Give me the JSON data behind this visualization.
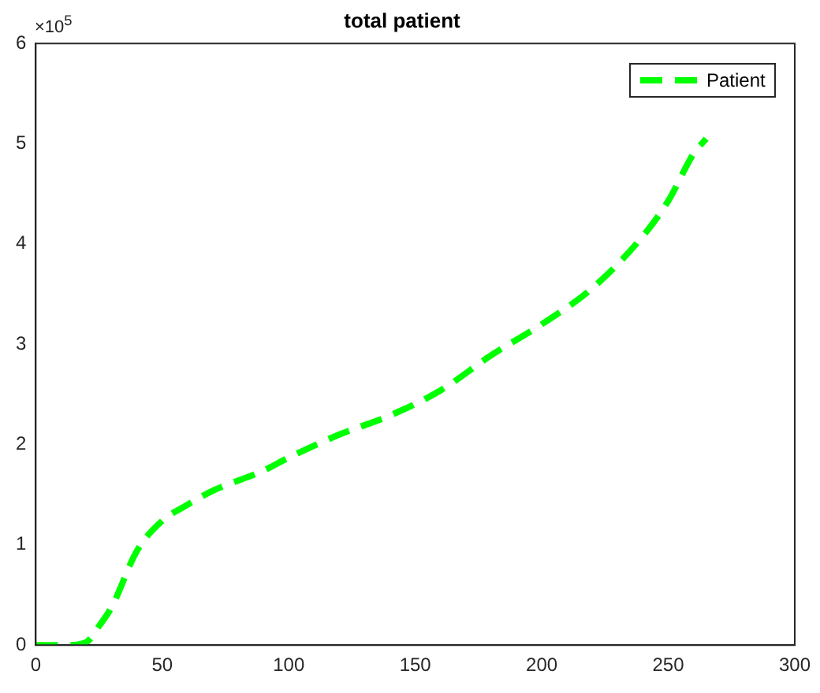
{
  "chart_data": {
    "type": "line",
    "title": "total patient",
    "x": [
      0,
      12,
      20,
      25,
      30,
      40,
      50,
      60,
      70,
      90,
      100,
      120,
      140,
      160,
      180,
      200,
      220,
      240,
      250,
      260,
      265
    ],
    "series": [
      {
        "name": "Patient",
        "color": "#00ff00",
        "values": [
          0,
          0,
          0.03,
          0.19,
          0.38,
          0.94,
          1.24,
          1.4,
          1.54,
          1.74,
          1.87,
          2.1,
          2.29,
          2.54,
          2.89,
          3.2,
          3.56,
          4.08,
          4.43,
          4.9,
          5.05
        ]
      }
    ],
    "xlim": [
      0,
      300
    ],
    "xticks": [
      0,
      50,
      100,
      150,
      200,
      250,
      300
    ],
    "ylim": [
      0,
      6
    ],
    "yticks": [
      0,
      1,
      2,
      3,
      4,
      5,
      6
    ],
    "annotations": [
      "×10$^{5}$"
    ],
    "legend": "top right",
    "grid": false,
    "marker": "none",
    "line_style": "dashed"
  }
}
